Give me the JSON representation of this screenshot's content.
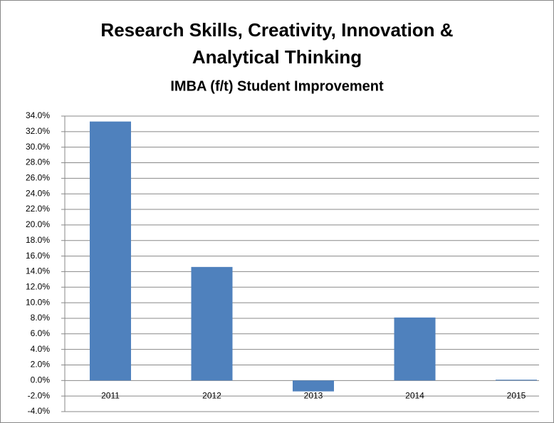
{
  "chart_data": {
    "type": "bar",
    "title": [
      "Research Skills, Creativity, Innovation &",
      "Analytical Thinking"
    ],
    "subtitle": "IMBA (f/t) Student Improvement",
    "categories": [
      "2011",
      "2012",
      "2013",
      "2014",
      "2015"
    ],
    "values": [
      33.3,
      14.6,
      -1.4,
      8.1,
      0.1
    ],
    "color": "#4f81bd",
    "ylim": [
      -4,
      34
    ],
    "yticks": [
      {
        "value": -4,
        "label": "-4.0%"
      },
      {
        "value": -2,
        "label": "-2.0%"
      },
      {
        "value": 0,
        "label": "0.0%"
      },
      {
        "value": 2,
        "label": "2.0%"
      },
      {
        "value": 4,
        "label": "4.0%"
      },
      {
        "value": 6,
        "label": "6.0%"
      },
      {
        "value": 8,
        "label": "8.0%"
      },
      {
        "value": 10,
        "label": "10.0%"
      },
      {
        "value": 12,
        "label": "12.0%"
      },
      {
        "value": 14,
        "label": "14.0%"
      },
      {
        "value": 16,
        "label": "16.0%"
      },
      {
        "value": 18,
        "label": "18.0%"
      },
      {
        "value": 20,
        "label": "20.0%"
      },
      {
        "value": 22,
        "label": "22.0%"
      },
      {
        "value": 24,
        "label": "24.0%"
      },
      {
        "value": 26,
        "label": "26.0%"
      },
      {
        "value": 28,
        "label": "28.0%"
      },
      {
        "value": 30,
        "label": "30.0%"
      },
      {
        "value": 32,
        "label": "32.0%"
      },
      {
        "value": 34,
        "label": "34.0%"
      }
    ],
    "grid": true
  }
}
